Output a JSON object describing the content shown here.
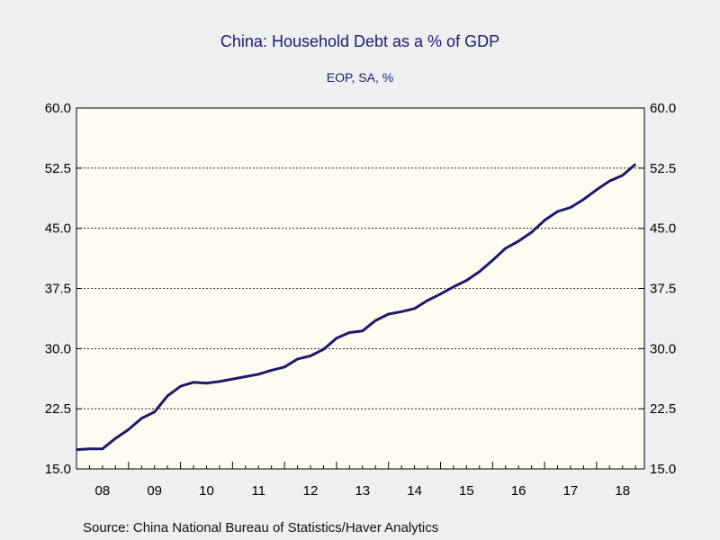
{
  "colors": {
    "background": "#efefef",
    "plot_background": "#fffbf0",
    "line": "#1a1a6e",
    "title": "#1a1a7a",
    "grid": "#000000"
  },
  "chart_data": {
    "type": "line",
    "title": "China: Household Debt as a % of GDP",
    "subtitle": "EOP, SA, %",
    "source": "Source:  China National Bureau of Statistics/Haver Analytics",
    "ylim": [
      15.0,
      60.0
    ],
    "yticks": [
      "15.0",
      "22.5",
      "30.0",
      "37.5",
      "45.0",
      "52.5",
      "60.0"
    ],
    "dual_y_axis": true,
    "grid": "horizontal-dashed",
    "x_labels": [
      "08",
      "09",
      "10",
      "11",
      "12",
      "13",
      "14",
      "15",
      "16",
      "17",
      "18"
    ],
    "xlim": [
      2008.0,
      2018.92
    ],
    "series": [
      {
        "x": [
          2008.0,
          2008.25,
          2008.5,
          2008.75,
          2009.0,
          2009.25,
          2009.5,
          2009.75,
          2010.0,
          2010.25,
          2010.5,
          2010.75,
          2011.0,
          2011.25,
          2011.5,
          2011.75,
          2012.0,
          2012.25,
          2012.5,
          2012.75,
          2013.0,
          2013.25,
          2013.5,
          2013.75,
          2014.0,
          2014.25,
          2014.5,
          2014.75,
          2015.0,
          2015.25,
          2015.5,
          2015.75,
          2016.0,
          2016.25,
          2016.5,
          2016.75,
          2017.0,
          2017.25,
          2017.5,
          2017.75,
          2018.0,
          2018.25,
          2018.5,
          2018.75
        ],
        "values": [
          17.4,
          17.5,
          17.5,
          18.8,
          19.9,
          21.3,
          22.1,
          24.1,
          25.3,
          25.8,
          25.7,
          25.9,
          26.2,
          26.5,
          26.8,
          27.3,
          27.7,
          28.7,
          29.1,
          29.9,
          31.3,
          32.0,
          32.2,
          33.5,
          34.3,
          34.6,
          35.0,
          36.0,
          36.8,
          37.7,
          38.5,
          39.6,
          41.0,
          42.5,
          43.4,
          44.5,
          46.0,
          47.1,
          47.6,
          48.6,
          49.8,
          50.9,
          51.6,
          53.0
        ]
      }
    ]
  }
}
